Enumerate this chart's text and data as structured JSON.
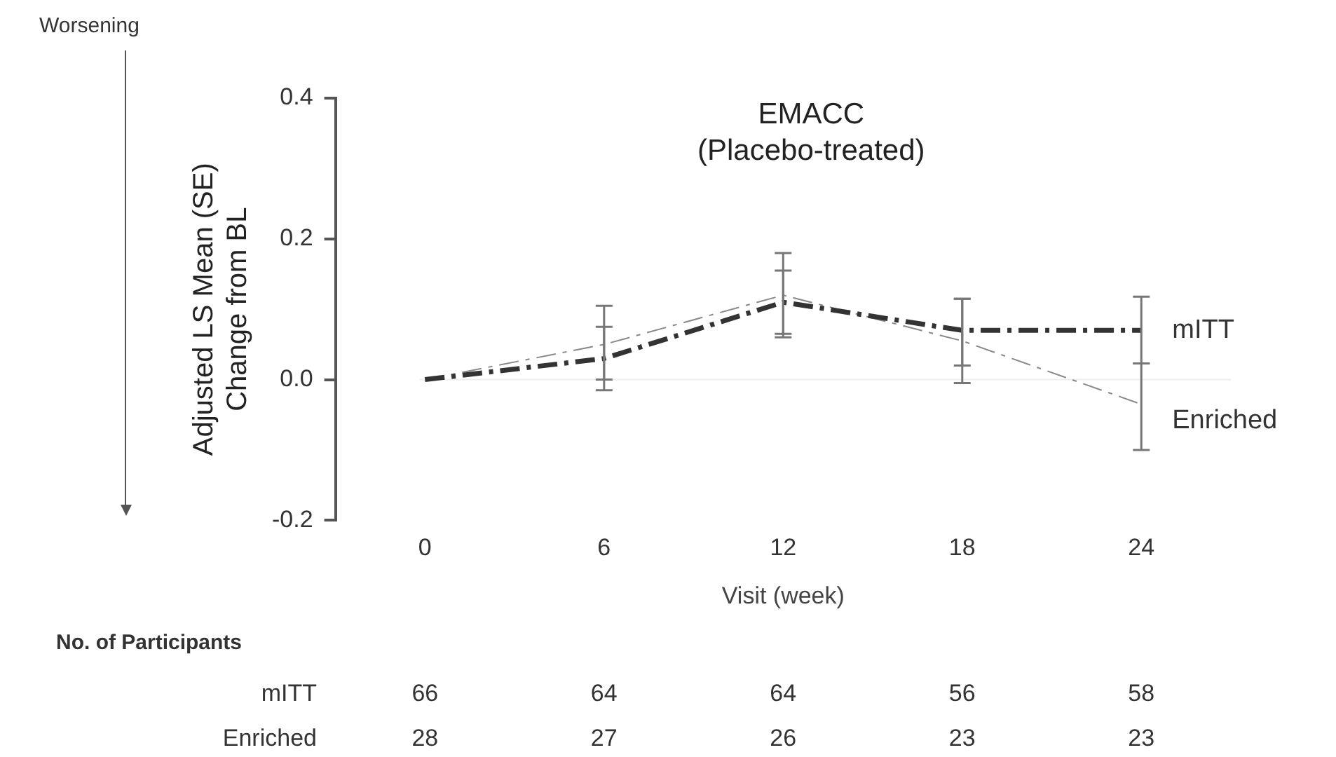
{
  "chart_data": {
    "type": "line",
    "title": "EMACC",
    "subtitle": "(Placebo-treated)",
    "xlabel": "Visit (week)",
    "ylabel": "Adjusted LS Mean (SE)\nChange from BL",
    "categories": [
      "0",
      "6",
      "12",
      "18",
      "24"
    ],
    "series": [
      {
        "name": "mITT",
        "color": "#333333",
        "line_style": "dashed",
        "values": [
          0,
          0.03,
          0.11,
          0.07,
          0.07
        ],
        "errors": [
          null,
          [
            -0.015,
            0.075
          ],
          [
            0.065,
            0.155
          ],
          [
            0.02,
            0.115
          ],
          [
            0.023,
            0.118
          ]
        ]
      },
      {
        "name": "Enriched",
        "color": "#888888",
        "line_style": "dashed",
        "values": [
          0,
          0.05,
          0.12,
          0.055,
          -0.035
        ],
        "errors": [
          null,
          [
            0.0,
            0.105
          ],
          [
            0.06,
            0.18
          ],
          [
            -0.005,
            0.115
          ],
          [
            -0.1,
            0.023
          ]
        ]
      }
    ],
    "ylim": [
      -0.2,
      0.4
    ],
    "yticks": [
      {
        "value": -0.2,
        "label": "-0.2"
      },
      {
        "value": 0,
        "label": "0.0"
      },
      {
        "value": 0.2,
        "label": "0.2"
      },
      {
        "value": 0.4,
        "label": "0.4"
      }
    ],
    "ref_lines": [
      {
        "axis": "y",
        "value": 0,
        "color": "#eeeeee"
      }
    ],
    "grid": false,
    "legend": false,
    "marker": "none",
    "annotations": [
      "Worsening",
      "No. of Participants",
      "mITT",
      "66",
      "64",
      "64",
      "56",
      "58",
      "Enriched",
      "28",
      "27",
      "26",
      "23",
      "23"
    ]
  }
}
